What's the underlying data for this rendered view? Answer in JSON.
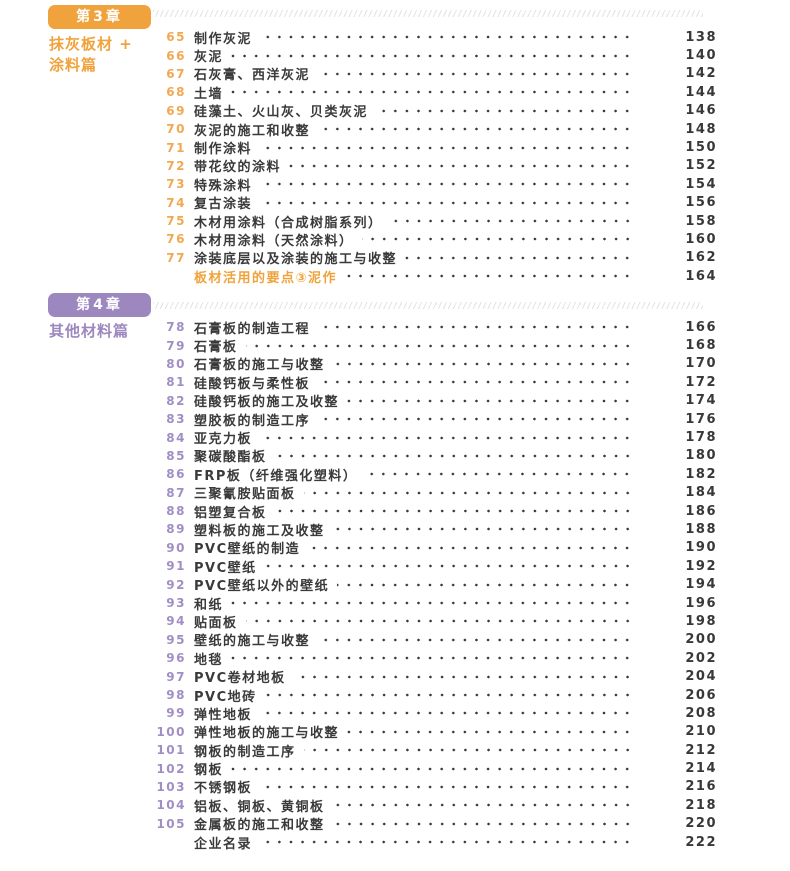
{
  "page": {
    "background_color": "#ffffff",
    "text_color": "#3a3a3a",
    "dot_color": "#3a3a3a"
  },
  "chapters": [
    {
      "badge": "第3章",
      "title_lines": [
        "抹灰板材 +",
        "涂料篇"
      ],
      "accent_color": "#f0a33c",
      "number_color": "#f2a850",
      "entries": [
        {
          "num": "65",
          "title": "制作灰泥",
          "page": "138"
        },
        {
          "num": "66",
          "title": "灰泥",
          "page": "140"
        },
        {
          "num": "67",
          "title": "石灰膏、西洋灰泥",
          "page": "142"
        },
        {
          "num": "68",
          "title": "土墙",
          "page": "144"
        },
        {
          "num": "69",
          "title": "硅藻土、火山灰、贝类灰泥",
          "page": "146"
        },
        {
          "num": "70",
          "title": "灰泥的施工和收整",
          "page": "148"
        },
        {
          "num": "71",
          "title": "制作涂料",
          "page": "150"
        },
        {
          "num": "72",
          "title": "带花纹的涂料",
          "page": "152"
        },
        {
          "num": "73",
          "title": "特殊涂料",
          "page": "154"
        },
        {
          "num": "74",
          "title": "复古涂装",
          "page": "156"
        },
        {
          "num": "75",
          "title": "木材用涂料（合成树脂系列）",
          "page": "158"
        },
        {
          "num": "76",
          "title": "木材用涂料（天然涂料）",
          "page": "160"
        },
        {
          "num": "77",
          "title": "涂装底层以及涂装的施工与收整",
          "page": "162"
        },
        {
          "num": "",
          "title": "板材活用的要点③泥作",
          "page": "164",
          "highlight": true
        }
      ]
    },
    {
      "badge": "第4章",
      "title_lines": [
        "其他材料篇"
      ],
      "accent_color": "#9c87bf",
      "number_color": "#a18fc4",
      "entries": [
        {
          "num": "78",
          "title": "石膏板的制造工程",
          "page": "166"
        },
        {
          "num": "79",
          "title": "石膏板",
          "page": "168"
        },
        {
          "num": "80",
          "title": "石膏板的施工与收整",
          "page": "170"
        },
        {
          "num": "81",
          "title": "硅酸钙板与柔性板",
          "page": "172"
        },
        {
          "num": "82",
          "title": "硅酸钙板的施工及收整",
          "page": "174"
        },
        {
          "num": "83",
          "title": "塑胶板的制造工序",
          "page": "176"
        },
        {
          "num": "84",
          "title": "亚克力板",
          "page": "178"
        },
        {
          "num": "85",
          "title": "聚碳酸酯板",
          "page": "180"
        },
        {
          "num": "86",
          "title": "FRP板（纤维强化塑料）",
          "page": "182"
        },
        {
          "num": "87",
          "title": "三聚氰胺贴面板",
          "page": "184"
        },
        {
          "num": "88",
          "title": "铝塑复合板",
          "page": "186"
        },
        {
          "num": "89",
          "title": "塑料板的施工及收整",
          "page": "188"
        },
        {
          "num": "90",
          "title": "PVC壁纸的制造",
          "page": "190"
        },
        {
          "num": "91",
          "title": "PVC壁纸",
          "page": "192"
        },
        {
          "num": "92",
          "title": "PVC壁纸以外的壁纸",
          "page": "194"
        },
        {
          "num": "93",
          "title": "和纸",
          "page": "196"
        },
        {
          "num": "94",
          "title": "贴面板",
          "page": "198"
        },
        {
          "num": "95",
          "title": "壁纸的施工与收整",
          "page": "200"
        },
        {
          "num": "96",
          "title": "地毯",
          "page": "202"
        },
        {
          "num": "97",
          "title": "PVC卷材地板",
          "page": "204"
        },
        {
          "num": "98",
          "title": "PVC地砖",
          "page": "206"
        },
        {
          "num": "99",
          "title": "弹性地板",
          "page": "208"
        },
        {
          "num": "100",
          "title": "弹性地板的施工与收整",
          "page": "210"
        },
        {
          "num": "101",
          "title": "钢板的制造工序",
          "page": "212"
        },
        {
          "num": "102",
          "title": "钢板",
          "page": "214"
        },
        {
          "num": "103",
          "title": "不锈钢板",
          "page": "216"
        },
        {
          "num": "104",
          "title": "铝板、铜板、黄铜板",
          "page": "218"
        },
        {
          "num": "105",
          "title": "金属板的施工和收整",
          "page": "220"
        },
        {
          "num": "",
          "title": "企业名录",
          "page": "222"
        }
      ]
    }
  ]
}
